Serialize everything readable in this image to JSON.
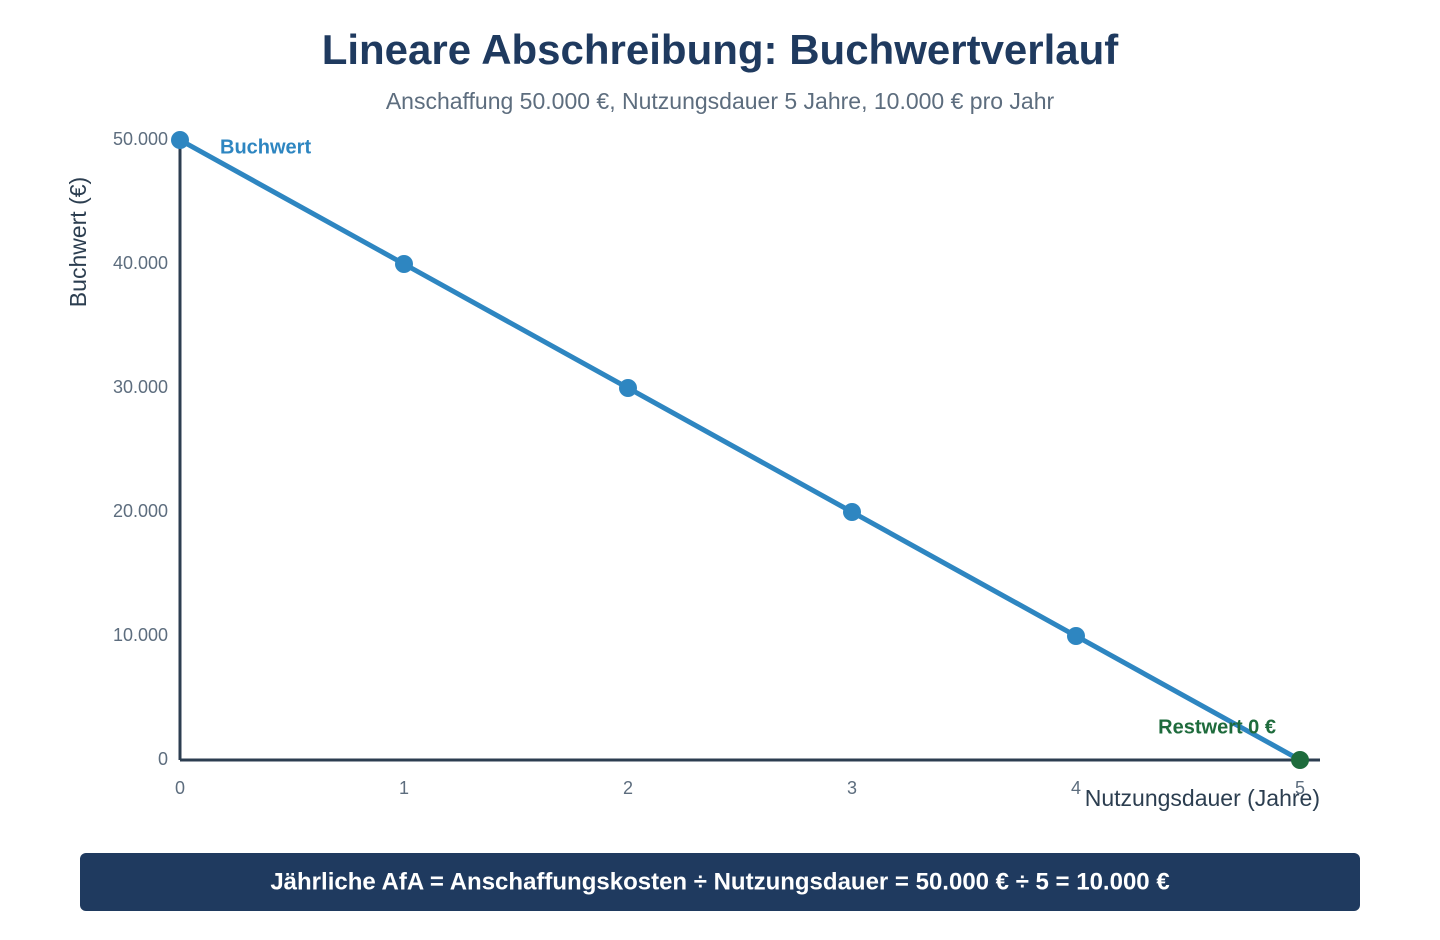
{
  "chart_data": {
    "type": "line",
    "title": "Lineare Abschreibung: Buchwertverlauf",
    "subtitle": "Anschaffung 50.000 €, Nutzungsdauer 5 Jahre, 10.000 € pro Jahr",
    "x_label": "Nutzungsdauer (Jahre)",
    "y_label": "Buchwert (€)",
    "x": [
      0,
      1,
      2,
      3,
      4,
      5
    ],
    "series": [
      {
        "name": "Buchwert",
        "color": "#2e86c1",
        "values": [
          50000,
          40000,
          30000,
          20000,
          10000,
          0
        ],
        "marker_colors": [
          "#2e86c1",
          "#2e86c1",
          "#2e86c1",
          "#2e86c1",
          "#2e86c1",
          "#1e6b3c"
        ]
      }
    ],
    "xlim": [
      0,
      5
    ],
    "xticks": [
      0,
      1,
      2,
      3,
      4,
      5
    ],
    "ylim": [
      0,
      50000
    ],
    "yticks": [
      0,
      {
        "value": 10000,
        "label": "10.000"
      },
      {
        "value": 20000,
        "label": "20.000"
      },
      {
        "value": 30000,
        "label": "30.000"
      },
      {
        "value": 40000,
        "label": "40.000"
      },
      {
        "value": 50000,
        "label": "50.000"
      }
    ],
    "grid": false,
    "annotation": {
      "text": "Restwert 0 €",
      "color": "#1e6b3c"
    },
    "formula": "Jährliche AfA = Anschaffungskosten ÷ Nutzungsdauer = 50.000 € ÷ 5 = 10.000 €"
  }
}
